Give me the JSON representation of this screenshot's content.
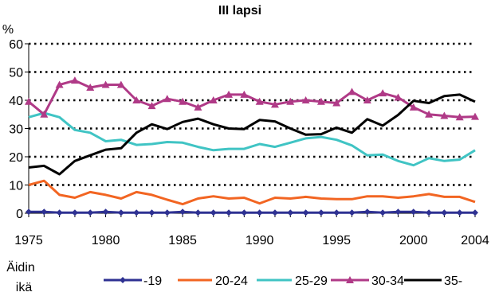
{
  "chart_data": {
    "type": "line",
    "title": "III lapsi",
    "ylabel": "%",
    "xlabel": "",
    "ylim": [
      0,
      60
    ],
    "yticks": [
      0,
      10,
      20,
      30,
      40,
      50,
      60
    ],
    "xlim": [
      1975,
      2004
    ],
    "xticks": [
      1975,
      1980,
      1985,
      1990,
      1995,
      2000,
      2004
    ],
    "grid": "horizontal-dotted",
    "legend_title": "Äidin ikä",
    "legend_title_lines": [
      "Äidin",
      "ikä"
    ],
    "legend_position": "bottom",
    "x": [
      1975,
      1976,
      1977,
      1978,
      1979,
      1980,
      1981,
      1982,
      1983,
      1984,
      1985,
      1986,
      1987,
      1988,
      1989,
      1990,
      1991,
      1992,
      1993,
      1994,
      1995,
      1996,
      1997,
      1998,
      1999,
      2000,
      2001,
      2002,
      2003,
      2004
    ],
    "series": [
      {
        "name": "-19",
        "color": "#2e3192",
        "marker": "diamond",
        "values": [
          0.5,
          0.5,
          0.2,
          0.2,
          0.2,
          0.5,
          0.2,
          0.2,
          0.2,
          0.2,
          0.5,
          0.2,
          0.2,
          0.2,
          0.2,
          0.2,
          0.2,
          0.2,
          0.2,
          0.2,
          0.2,
          0.2,
          0.5,
          0.2,
          0.5,
          0.5,
          0.2,
          0.2,
          0.2,
          0.2
        ]
      },
      {
        "name": "20-24",
        "color": "#f26522",
        "marker": "none",
        "values": [
          10,
          11.5,
          6.5,
          5.5,
          7.5,
          6.5,
          5.2,
          7.5,
          6.5,
          4.8,
          3.2,
          5.2,
          6,
          5.2,
          5.5,
          3.5,
          5.5,
          5.2,
          5.8,
          5.2,
          5,
          5,
          6,
          6,
          5.5,
          6,
          6.8,
          5.8,
          5.8,
          4
        ]
      },
      {
        "name": "25-29",
        "color": "#40c4c4",
        "marker": "none",
        "values": [
          34,
          35.5,
          34,
          29.5,
          28.5,
          25.5,
          26,
          24.2,
          24.5,
          25.2,
          25,
          23.5,
          22.3,
          22.8,
          22.8,
          24.5,
          23.5,
          25,
          26.5,
          27,
          26,
          24,
          20.5,
          20.8,
          18.5,
          17,
          19.5,
          18.5,
          19,
          22.3
        ]
      },
      {
        "name": "30-34",
        "color": "#b03a87",
        "marker": "triangle",
        "values": [
          39.5,
          35,
          45.5,
          47,
          44.5,
          45.5,
          45.5,
          40,
          38,
          40.5,
          39.5,
          37.5,
          40,
          42,
          42,
          39.5,
          38.5,
          39.5,
          40,
          39.5,
          39,
          43,
          40,
          42.5,
          41,
          37.5,
          35,
          34.5,
          34,
          34.2
        ]
      },
      {
        "name": "35-",
        "color": "#000000",
        "marker": "none",
        "values": [
          16.2,
          16.8,
          13.8,
          18.5,
          20.5,
          22.5,
          23,
          28.5,
          31.5,
          29.8,
          32.3,
          33.5,
          31.5,
          30,
          29.8,
          33,
          32.5,
          30,
          27.8,
          28,
          30.3,
          28.5,
          33.3,
          31,
          34.8,
          39.8,
          39,
          41.5,
          42,
          39.5
        ]
      }
    ]
  }
}
